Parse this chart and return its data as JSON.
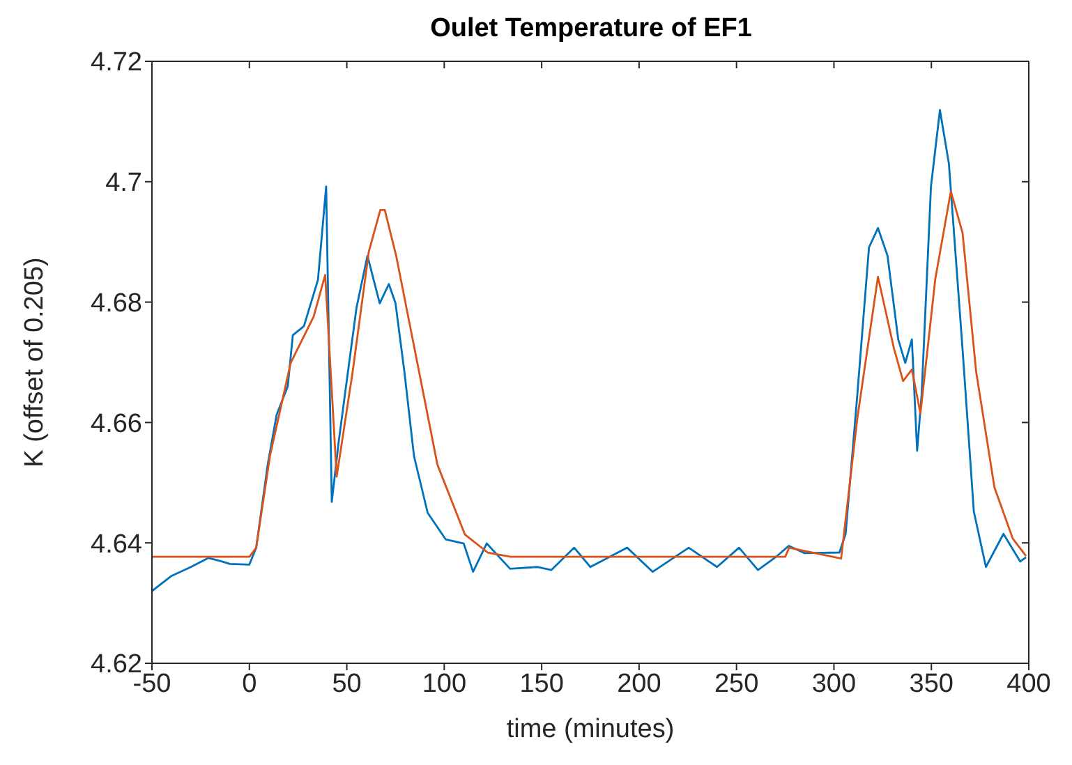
{
  "chart_data": {
    "type": "line",
    "title": "Oulet Temperature of EF1",
    "xlabel": "time (minutes)",
    "ylabel": "K (offset of 0.205)",
    "xlim": [
      -50,
      400
    ],
    "xticks": [
      -50,
      0,
      50,
      100,
      150,
      200,
      250,
      300,
      350,
      400
    ],
    "ylim": [
      4.62,
      4.72
    ],
    "yticks": [
      4.62,
      4.64,
      4.66,
      4.68,
      4.7,
      4.72
    ],
    "marker": "none",
    "line_style": "solid",
    "series": [
      {
        "color": "#0072bd",
        "x": [
          -50,
          -40,
          -30,
          -21,
          -15,
          -10,
          0,
          3.5,
          9.4,
          14,
          19.7,
          22.3,
          28,
          35.2,
          39.4,
          42.3,
          45.8,
          49.3,
          55,
          60.6,
          66.9,
          71.6,
          75,
          79.6,
          84.5,
          91.5,
          100.7,
          110,
          114.8,
          121.8,
          133.8,
          148,
          155,
          166.7,
          175,
          193.9,
          207,
          225.5,
          240,
          251.3,
          261,
          270,
          276.8,
          285,
          302.8,
          306,
          312,
          318,
          322.6,
          327.5,
          333,
          336.6,
          340,
          342.7,
          345,
          349.8,
          354.4,
          359,
          366,
          371.8,
          378,
          387,
          395.6,
          398.6
        ],
        "values": [
          4.632,
          4.6345,
          4.636,
          4.6375,
          4.637,
          4.6365,
          4.6364,
          4.6392,
          4.653,
          4.6613,
          4.666,
          4.6745,
          4.676,
          4.6837,
          4.6992,
          4.6468,
          4.6567,
          4.6653,
          4.6791,
          4.6877,
          4.6798,
          4.683,
          4.6798,
          4.6683,
          4.6544,
          4.645,
          4.6406,
          4.6399,
          4.6352,
          4.6399,
          4.6357,
          4.636,
          4.6355,
          4.6392,
          4.636,
          4.6392,
          4.6352,
          4.6392,
          4.636,
          4.6392,
          4.6355,
          4.6376,
          4.6395,
          4.6383,
          4.6384,
          4.6415,
          4.6646,
          4.6891,
          4.6923,
          4.6877,
          4.6738,
          4.6699,
          4.6738,
          4.6553,
          4.6646,
          4.6992,
          4.7119,
          4.703,
          4.6722,
          4.6452,
          4.636,
          4.6415,
          4.6369,
          4.6376
        ]
      },
      {
        "color": "#d95319",
        "x": [
          -50,
          0,
          3.5,
          10.6,
          21.2,
          33,
          38.9,
          44.8,
          53,
          61.3,
          67.2,
          69.5,
          75.4,
          84.8,
          96.5,
          110.6,
          122.3,
          134,
          200,
          275,
          277,
          303.7,
          312,
          322.6,
          330.8,
          335.5,
          340,
          344.4,
          352,
          360,
          366,
          373,
          382.4,
          391.8,
          398.6
        ],
        "values": [
          4.6377,
          4.6377,
          4.6392,
          4.6545,
          4.6699,
          4.6776,
          4.6845,
          4.651,
          4.6684,
          4.6884,
          4.6953,
          4.6953,
          4.6876,
          4.6722,
          4.653,
          4.6414,
          4.6384,
          4.6377,
          4.6377,
          4.6377,
          4.6392,
          4.6374,
          4.6607,
          4.6842,
          4.6723,
          4.6669,
          4.6688,
          4.6615,
          4.6838,
          4.6984,
          4.6915,
          4.6684,
          4.6492,
          4.6407,
          4.6378
        ]
      }
    ]
  }
}
